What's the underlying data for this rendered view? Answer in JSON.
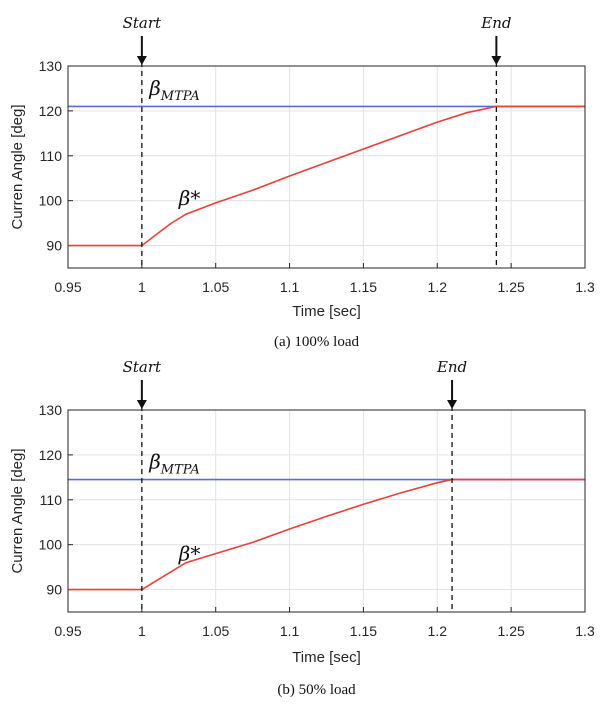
{
  "chart_data": [
    {
      "type": "line",
      "caption": "(a)  100% load",
      "xlabel": "Time [sec]",
      "ylabel": "Curren Angle [deg]",
      "xlim": [
        0.95,
        1.3
      ],
      "ylim": [
        85,
        130
      ],
      "x_ticks": [
        "0.95",
        "1",
        "1.05",
        "1.1",
        "1.15",
        "1.2",
        "1.25",
        "1.3"
      ],
      "y_ticks": [
        "90",
        "100",
        "110",
        "120",
        "130"
      ],
      "grid": true,
      "series": [
        {
          "name": "β_MTPA",
          "color": "#5b6bd9",
          "x": [
            0.95,
            1.3
          ],
          "y": [
            121,
            121
          ]
        },
        {
          "name": "β*",
          "color": "#e8403a",
          "x": [
            0.95,
            1.0,
            1.01,
            1.02,
            1.03,
            1.05,
            1.075,
            1.1,
            1.125,
            1.15,
            1.175,
            1.2,
            1.22,
            1.24,
            1.3
          ],
          "y": [
            90,
            90,
            92.5,
            95,
            97,
            99.5,
            102.3,
            105.5,
            108.5,
            111.5,
            114.5,
            117.5,
            119.6,
            121,
            121
          ]
        }
      ],
      "annotations": {
        "start_label": "Start",
        "start_x": 1.0,
        "end_label": "End",
        "end_x": 1.24,
        "mtpa_label": "β",
        "mtpa_sub": "MTPA",
        "mtpa_label_x": 1.005,
        "mtpa_label_y": 123.5,
        "ref_label": "β*",
        "ref_label_x": 1.025,
        "ref_label_y": 99
      }
    },
    {
      "type": "line",
      "caption": "(b)  50% load",
      "xlabel": "Time [sec]",
      "ylabel": "Curren Angle [deg]",
      "xlim": [
        0.95,
        1.3
      ],
      "ylim": [
        85,
        130
      ],
      "x_ticks": [
        "0.95",
        "1",
        "1.05",
        "1.1",
        "1.15",
        "1.2",
        "1.25",
        "1.3"
      ],
      "y_ticks": [
        "90",
        "100",
        "110",
        "120",
        "130"
      ],
      "grid": true,
      "series": [
        {
          "name": "β_MTPA",
          "color": "#5b6bd9",
          "x": [
            0.95,
            1.3
          ],
          "y": [
            114.5,
            114.5
          ]
        },
        {
          "name": "β*",
          "color": "#e8403a",
          "x": [
            0.95,
            1.0,
            1.01,
            1.02,
            1.03,
            1.05,
            1.075,
            1.1,
            1.125,
            1.15,
            1.175,
            1.2,
            1.21,
            1.3
          ],
          "y": [
            90,
            90,
            92,
            94,
            96,
            98,
            100.5,
            103.5,
            106.3,
            109,
            111.5,
            113.8,
            114.5,
            114.5
          ]
        }
      ],
      "annotations": {
        "start_label": "Start",
        "start_x": 1.0,
        "end_label": "End",
        "end_x": 1.21,
        "mtpa_label": "β",
        "mtpa_sub": "MTPA",
        "mtpa_label_x": 1.005,
        "mtpa_label_y": 117,
        "ref_label": "β*",
        "ref_label_x": 1.025,
        "ref_label_y": 96.5
      }
    }
  ]
}
